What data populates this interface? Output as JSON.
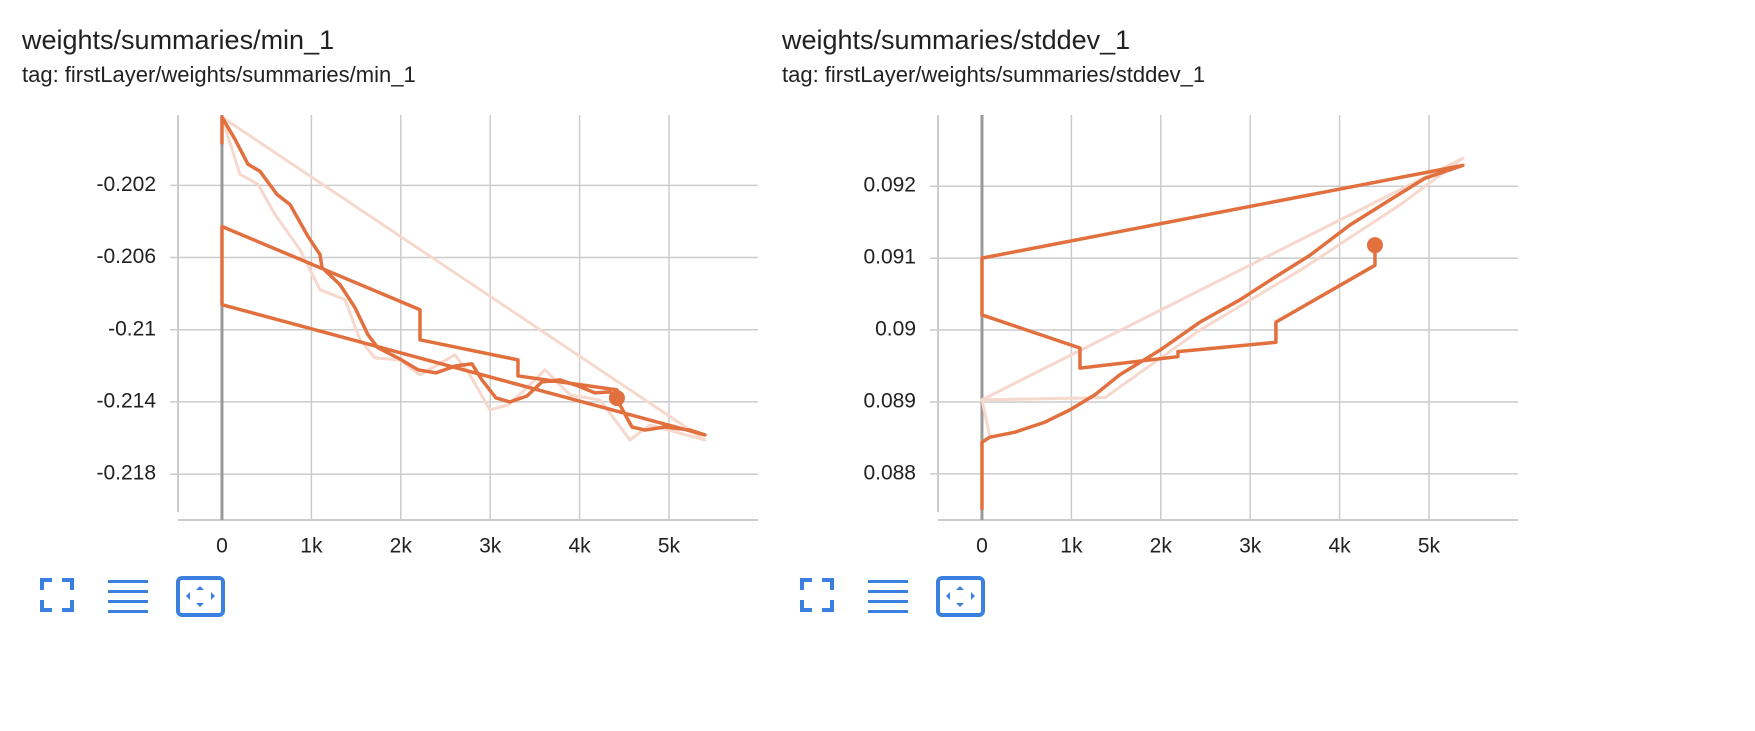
{
  "chart_data": [
    {
      "type": "line",
      "title": "weights/summaries/min_1",
      "subtitle": "tag: firstLayer/weights/summaries/min_1",
      "xlim": [
        -492,
        5996
      ],
      "xticks": [
        0,
        {
          "value": 1000,
          "label": "1k"
        },
        {
          "value": 2000,
          "label": "2k"
        },
        {
          "value": 3000,
          "label": "3k"
        },
        {
          "value": 4000,
          "label": "4k"
        },
        {
          "value": 5000,
          "label": "5k"
        }
      ],
      "ylim": [
        -0.2201,
        -0.1981
      ],
      "yticks": [
        -0.202,
        -0.206,
        -0.21,
        -0.214,
        -0.218
      ],
      "grid": true,
      "series": [
        {
          "color": "#f6d8cc",
          "x": [
            0,
            201,
            403,
            593,
            872,
            1096,
            1376,
            1544,
            1711,
            1991,
            2215,
            2606,
            2774,
            2998,
            3199,
            3445,
            3613,
            3893,
            4228,
            4564,
            4787,
            5403,
            0
          ],
          "values": [
            -0.19822,
            -0.20139,
            -0.20194,
            -0.20361,
            -0.20556,
            -0.20778,
            -0.20833,
            -0.21056,
            -0.21156,
            -0.21167,
            -0.2125,
            -0.21139,
            -0.2125,
            -0.21444,
            -0.21417,
            -0.21306,
            -0.21222,
            -0.21361,
            -0.21389,
            -0.21611,
            -0.21528,
            -0.21611,
            -0.19822
          ]
        },
        {
          "color": "#e2703f",
          "x": [
            0,
            0,
            145,
            291,
            425,
            615,
            761,
            962,
            1096,
            1119,
            1320,
            1488,
            1633,
            1745,
            1969,
            2192,
            2394,
            2617,
            2796,
            2908,
            3065,
            3221,
            3412,
            3579,
            3781,
            3982,
            4172,
            4340,
            4452,
            4586,
            4732,
            4955,
            5235,
            5403,
            0,
            0,
            2215,
            2215,
            3311,
            3311,
            4418,
            4418
          ],
          "values": [
            -0.19972,
            -0.19822,
            -0.19944,
            -0.20083,
            -0.20122,
            -0.2025,
            -0.20306,
            -0.20483,
            -0.20583,
            -0.20656,
            -0.2075,
            -0.20878,
            -0.21028,
            -0.211,
            -0.21156,
            -0.21222,
            -0.21239,
            -0.212,
            -0.21189,
            -0.21278,
            -0.21378,
            -0.214,
            -0.21367,
            -0.21289,
            -0.21278,
            -0.21311,
            -0.2135,
            -0.21344,
            -0.21417,
            -0.21539,
            -0.21556,
            -0.21539,
            -0.21556,
            -0.21583,
            -0.20861,
            -0.20428,
            -0.20889,
            -0.21056,
            -0.21167,
            -0.21256,
            -0.21333,
            -0.21378
          ]
        }
      ]
    },
    {
      "type": "line",
      "title": "weights/summaries/stddev_1",
      "subtitle": "tag: firstLayer/weights/summaries/stddev_1",
      "xlim": [
        -492,
        5996
      ],
      "xticks": [
        0,
        {
          "value": 1000,
          "label": "1k"
        },
        {
          "value": 2000,
          "label": "2k"
        },
        {
          "value": 3000,
          "label": "3k"
        },
        {
          "value": 4000,
          "label": "4k"
        },
        {
          "value": 5000,
          "label": "5k"
        }
      ],
      "ylim": [
        0.08747,
        0.09299
      ],
      "yticks": [
        0.092,
        0.091,
        0.09,
        0.089,
        0.088
      ],
      "grid": true,
      "series": [
        {
          "color": "#f6d8cc",
          "x": [
            89,
            0,
            1376,
            2438,
            3557,
            4676,
            5380,
            0
          ],
          "values": [
            0.08851,
            0.08903,
            0.08906,
            0.09,
            0.09083,
            0.09174,
            0.09239,
            0.08903
          ]
        },
        {
          "color": "#e2703f",
          "x": [
            0,
            0,
            89,
            369,
            705,
            984,
            1264,
            1544,
            1991,
            2438,
            2886,
            3221,
            3669,
            4116,
            4564,
            4955,
            5380,
            0,
            0,
            1096,
            1096,
            2192,
            2192,
            3288,
            3288,
            4396,
            4396
          ],
          "values": [
            0.0875,
            0.08844,
            0.08851,
            0.08858,
            0.08872,
            0.08889,
            0.0891,
            0.08938,
            0.08972,
            0.09011,
            0.09042,
            0.09069,
            0.09104,
            0.09146,
            0.09181,
            0.09211,
            0.09229,
            0.091,
            0.09021,
            0.08975,
            0.08947,
            0.08963,
            0.0897,
            0.08983,
            0.09011,
            0.0909,
            0.09118
          ]
        }
      ]
    }
  ]
}
